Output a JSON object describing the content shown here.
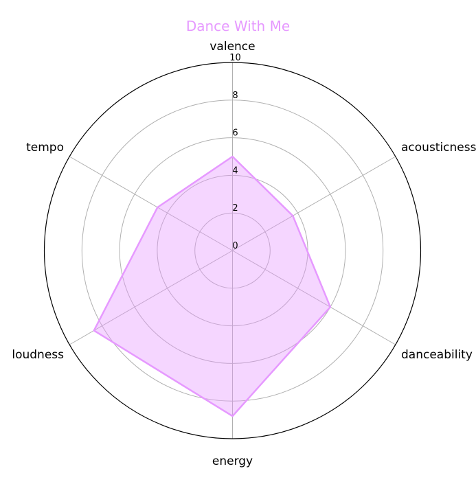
{
  "chart_data": {
    "type": "radar",
    "title": "Dance With Me",
    "axes": [
      "valence",
      "acousticness",
      "danceability",
      "energy",
      "loudness",
      "tempo"
    ],
    "series": [
      {
        "values": [
          5,
          3.7,
          6,
          8.8,
          8.5,
          4.6
        ],
        "color": "#e699ff"
      }
    ],
    "rlim": [
      0,
      10
    ],
    "rticks": [
      0,
      2,
      4,
      6,
      8,
      10
    ],
    "grid": true,
    "title_color": "#e699ff"
  }
}
